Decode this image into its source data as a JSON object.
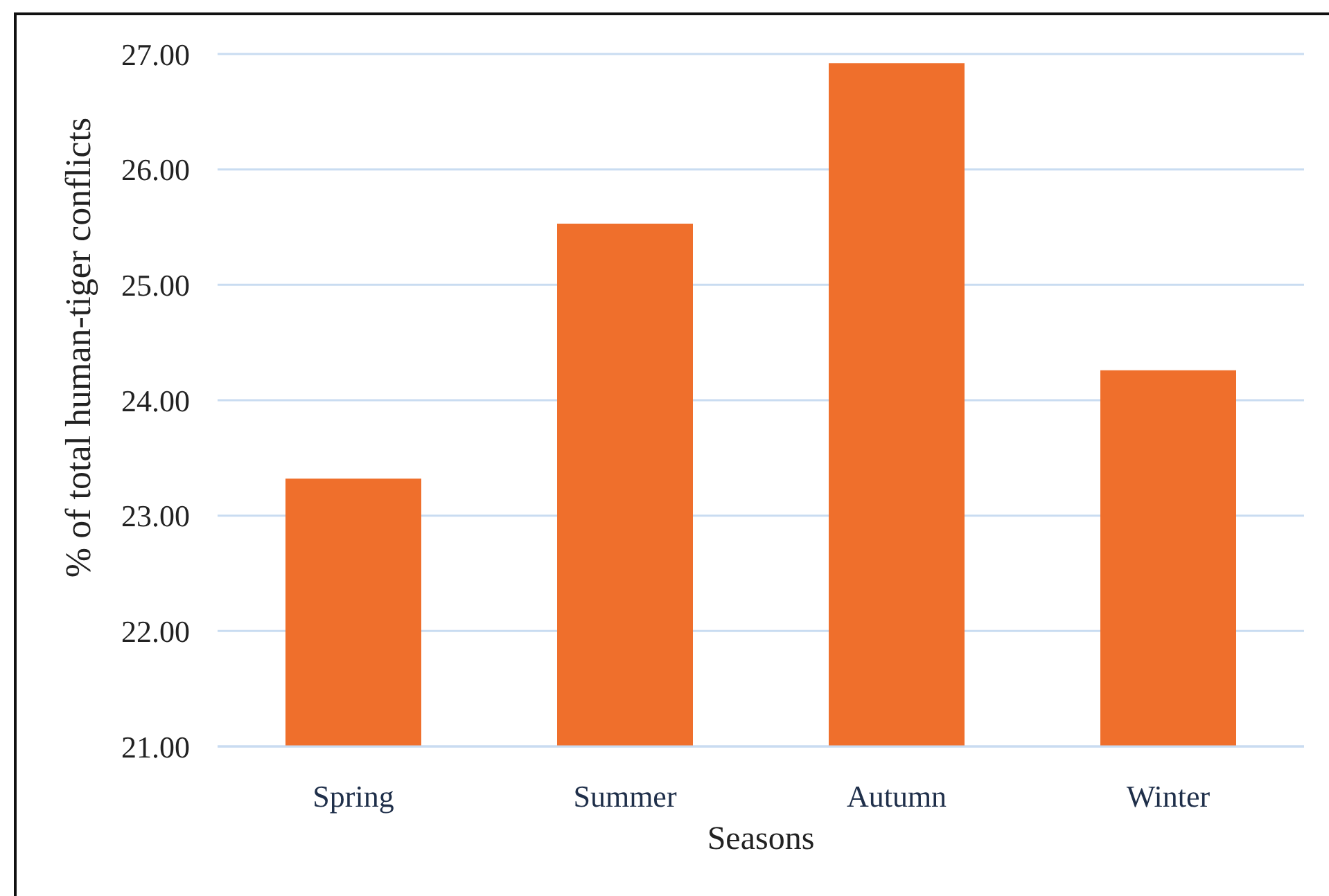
{
  "chart_data": {
    "type": "bar",
    "xlabel": "Seasons",
    "ylabel": "% of total human-tiger conflicts",
    "categories": [
      "Spring",
      "Summer",
      "Autumn",
      "Winter"
    ],
    "values": [
      23.32,
      25.53,
      26.92,
      24.26
    ],
    "color": "#ef6f2c",
    "ylim": [
      21,
      27
    ],
    "yticks": [
      {
        "value": 21,
        "label": "21.00"
      },
      {
        "value": 22,
        "label": "22.00"
      },
      {
        "value": 23,
        "label": "23.00"
      },
      {
        "value": 24,
        "label": "24.00"
      },
      {
        "value": 25,
        "label": "25.00"
      },
      {
        "value": 26,
        "label": "26.00"
      },
      {
        "value": 27,
        "label": "27.00"
      }
    ],
    "grid": "y"
  }
}
